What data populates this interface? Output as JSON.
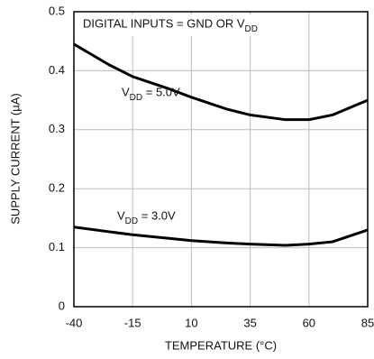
{
  "chart_data": {
    "type": "line",
    "annotation": "DIGITAL INPUTS = GND OR VDD",
    "xlabel": "TEMPERATURE (°C)",
    "ylabel": "SUPPLY CURRENT (µA)",
    "x": [
      -40,
      -25,
      -15,
      0,
      10,
      25,
      35,
      50,
      60,
      70,
      85
    ],
    "series": [
      {
        "name": "VDD = 5.0V",
        "color": "#000000",
        "values": [
          0.445,
          0.41,
          0.39,
          0.37,
          0.355,
          0.335,
          0.325,
          0.317,
          0.317,
          0.325,
          0.35
        ]
      },
      {
        "name": "VDD = 3.0V",
        "color": "#000000",
        "values": [
          0.135,
          0.127,
          0.122,
          0.116,
          0.112,
          0.108,
          0.106,
          0.104,
          0.106,
          0.11,
          0.13
        ]
      }
    ],
    "xlim": [
      -40,
      85
    ],
    "xticks": [
      -40,
      -15,
      10,
      35,
      60,
      85
    ],
    "ylim": [
      0,
      0.5
    ],
    "yticks": [
      0,
      0.1,
      0.2,
      0.3,
      0.4,
      0.5
    ],
    "grid": true
  }
}
